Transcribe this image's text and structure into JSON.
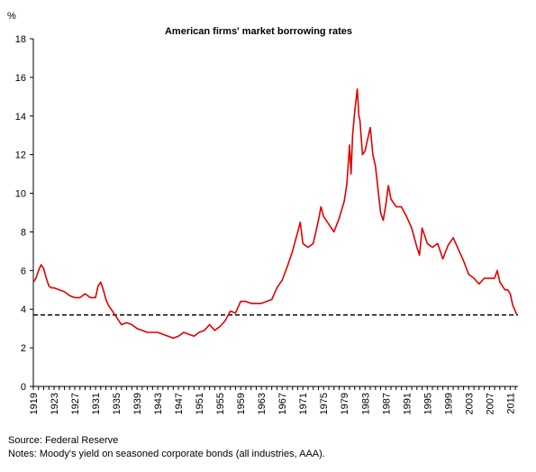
{
  "chart_data": {
    "type": "line",
    "title": "American firms' market borrowing rates",
    "ylabel": "%",
    "xlabel": "",
    "ylim": [
      0,
      18
    ],
    "xlim": [
      1919,
      2012.5
    ],
    "yticks": [
      0,
      2,
      4,
      6,
      8,
      10,
      12,
      14,
      16,
      18
    ],
    "xticks": [
      1919,
      1923,
      1927,
      1931,
      1935,
      1939,
      1943,
      1947,
      1951,
      1955,
      1959,
      1963,
      1967,
      1971,
      1975,
      1979,
      1983,
      1987,
      1991,
      1995,
      1999,
      2003,
      2007,
      2011
    ],
    "grid": false,
    "legend": "none",
    "reference_line": {
      "y": 3.7,
      "style": "dashed",
      "color": "#000000"
    },
    "series": [
      {
        "color": "#e00000",
        "x": [
          1919,
          1919.5,
          1920,
          1920.5,
          1921,
          1921.5,
          1922,
          1922.5,
          1923,
          1924,
          1925,
          1926,
          1927,
          1928,
          1929,
          1930,
          1931,
          1931.5,
          1932,
          1932.5,
          1933,
          1933.5,
          1934,
          1935,
          1936,
          1937,
          1938,
          1939,
          1940,
          1941,
          1942,
          1943,
          1944,
          1945,
          1946,
          1947,
          1948,
          1949,
          1950,
          1951,
          1952,
          1953,
          1954,
          1955,
          1956,
          1957,
          1958,
          1959,
          1960,
          1961,
          1962,
          1963,
          1964,
          1965,
          1966,
          1967,
          1968,
          1969,
          1970,
          1970.5,
          1971,
          1972,
          1973,
          1974,
          1974.5,
          1975,
          1976,
          1977,
          1978,
          1979,
          1979.5,
          1980,
          1980.3,
          1980.6,
          1981,
          1981.5,
          1981.8,
          1982,
          1982.5,
          1983,
          1983.5,
          1984,
          1984.5,
          1985,
          1986,
          1986.5,
          1987,
          1987.5,
          1988,
          1989,
          1990,
          1991,
          1992,
          1993,
          1993.5,
          1994,
          1995,
          1996,
          1997,
          1998,
          1999,
          2000,
          2001,
          2002,
          2003,
          2004,
          2005,
          2006,
          2007,
          2008,
          2008.5,
          2009,
          2010,
          2010.5,
          2011,
          2011.5,
          2012,
          2012.3
        ],
        "values": [
          5.4,
          5.6,
          6.0,
          6.3,
          6.1,
          5.6,
          5.2,
          5.1,
          5.1,
          5.0,
          4.9,
          4.7,
          4.6,
          4.6,
          4.8,
          4.6,
          4.6,
          5.2,
          5.4,
          5.0,
          4.5,
          4.2,
          4.0,
          3.6,
          3.2,
          3.3,
          3.2,
          3.0,
          2.9,
          2.8,
          2.8,
          2.8,
          2.7,
          2.6,
          2.5,
          2.6,
          2.8,
          2.7,
          2.6,
          2.8,
          2.9,
          3.2,
          2.9,
          3.1,
          3.4,
          3.9,
          3.8,
          4.4,
          4.4,
          4.3,
          4.3,
          4.3,
          4.4,
          4.5,
          5.1,
          5.5,
          6.2,
          7.0,
          8.0,
          8.5,
          7.4,
          7.2,
          7.4,
          8.6,
          9.3,
          8.8,
          8.4,
          8.0,
          8.7,
          9.6,
          10.5,
          12.5,
          11.0,
          13.0,
          14.2,
          15.4,
          14.0,
          13.8,
          12.0,
          12.2,
          12.8,
          13.4,
          12.0,
          11.4,
          9.0,
          8.6,
          9.4,
          10.4,
          9.7,
          9.3,
          9.3,
          8.8,
          8.2,
          7.2,
          6.8,
          8.2,
          7.4,
          7.2,
          7.4,
          6.6,
          7.3,
          7.7,
          7.1,
          6.5,
          5.8,
          5.6,
          5.3,
          5.6,
          5.6,
          5.6,
          6.0,
          5.4,
          5.0,
          5.0,
          4.8,
          4.2,
          3.9,
          3.7
        ]
      }
    ]
  },
  "source": "Source:  Federal Reserve",
  "notes": "Notes: Moody's yield on seasoned corporate bonds (all industries, AAA)."
}
